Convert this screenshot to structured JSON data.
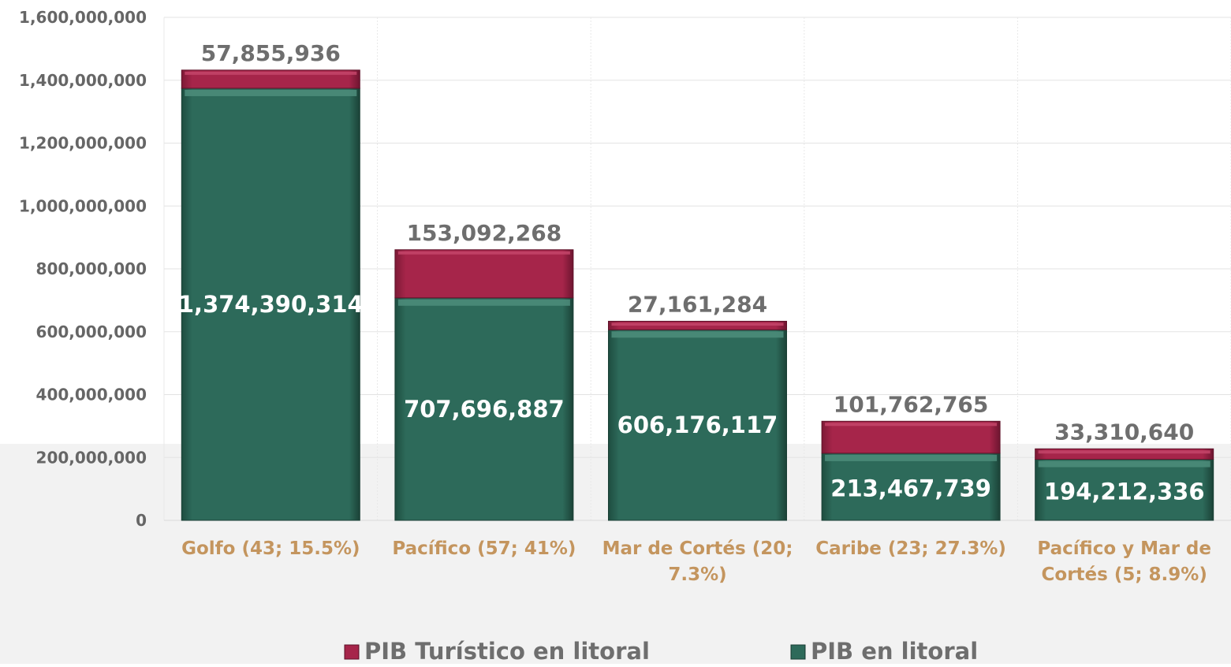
{
  "chart_data": {
    "type": "bar",
    "stacked": true,
    "categories": [
      [
        "Golfo (43; 15.5%)"
      ],
      [
        "Pacífico (57; 41%)"
      ],
      [
        "Mar de Cortés (20;",
        "7.3%)"
      ],
      [
        "Caribe (23; 27.3%)"
      ],
      [
        "Pacífico y Mar de",
        "Cortés (5; 8.9%)"
      ]
    ],
    "series": [
      {
        "name": "PIB en litoral",
        "values": [
          1374390314,
          707696887,
          606176117,
          213467739,
          194212336
        ],
        "labels": [
          "1,374,390,314",
          "707,696,887",
          "606,176,117",
          "213,467,739",
          "194,212,336"
        ]
      },
      {
        "name": "PIB Turístico en litoral",
        "values": [
          57855936,
          153092268,
          27161284,
          101762765,
          33310640
        ],
        "labels": [
          "57,855,936",
          "153,092,268",
          "27,161,284",
          "101,762,765",
          "33,310,640"
        ]
      }
    ],
    "y_ticks": [
      0,
      200000000,
      400000000,
      600000000,
      800000000,
      1000000000,
      1200000000,
      1400000000,
      1600000000
    ],
    "y_tick_labels": [
      "0",
      "200,000,000",
      "400,000,000",
      "600,000,000",
      "800,000,000",
      "1,000,000,000",
      "1,200,000,000",
      "1,400,000,000",
      "1,600,000,000"
    ],
    "ylim": [
      0,
      1600000000
    ],
    "grid": true,
    "legend_position": "bottom",
    "colors": {
      "PIB en litoral": "#2d6a5a",
      "PIB Turístico en litoral": "#a6254a",
      "category_label": "#c4955e",
      "tick_label": "#666666",
      "top_label": "#6e6e6e",
      "inner_label": "#ffffff"
    }
  }
}
